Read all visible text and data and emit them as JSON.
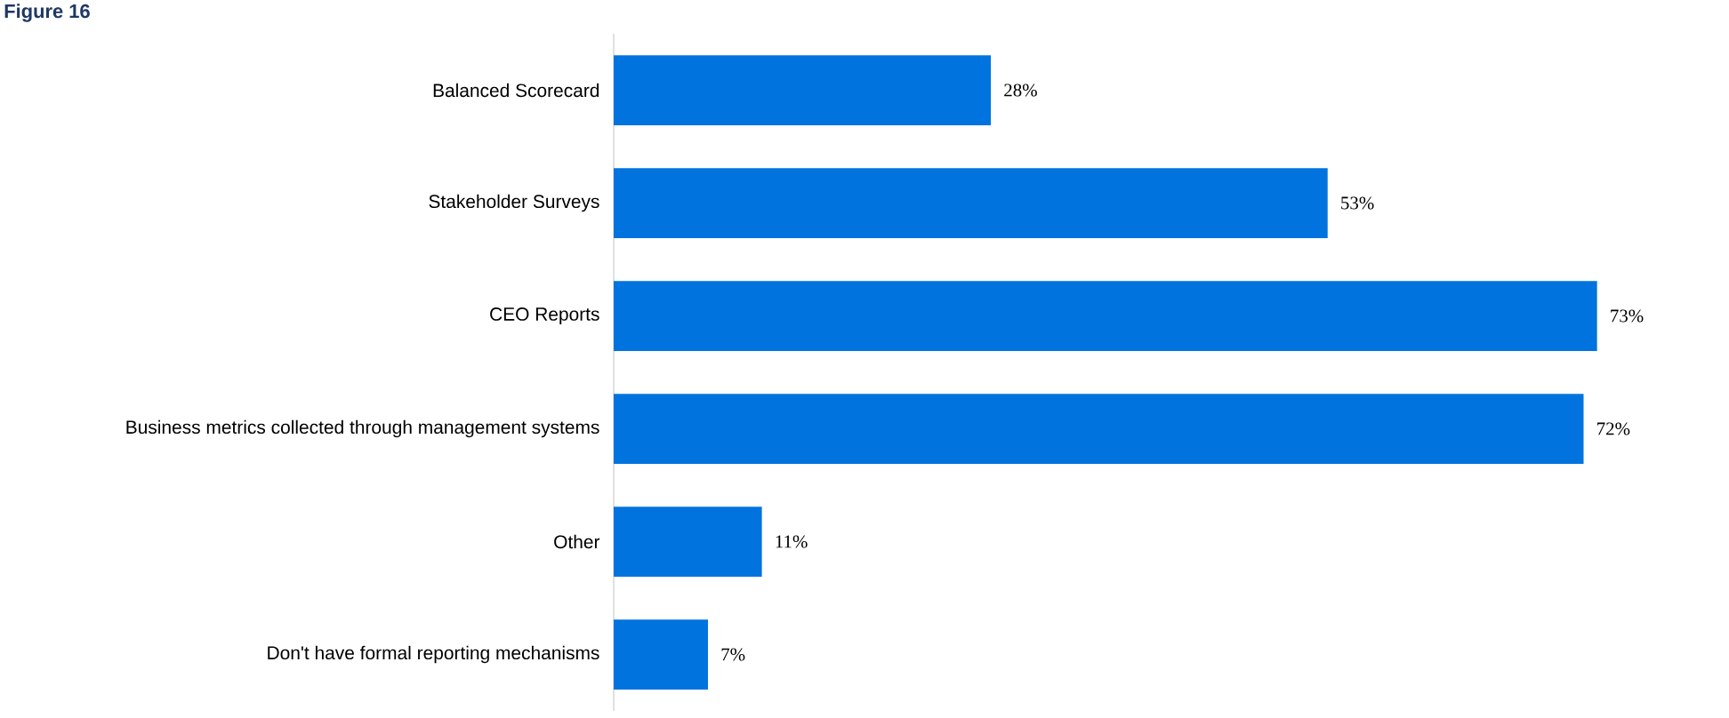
{
  "chart_data": {
    "type": "bar",
    "orientation": "horizontal",
    "title": "Figure 16",
    "categories": [
      "Balanced Scorecard",
      "Stakeholder Surveys",
      "CEO Reports",
      "Business metrics collected through management systems",
      "Other",
      "Don't have formal reporting mechanisms"
    ],
    "values": [
      28,
      53,
      73,
      72,
      11,
      7
    ],
    "value_labels": [
      "28%",
      "53%",
      "73%",
      "72%",
      "11%",
      "7%"
    ],
    "color": "#0073de"
  }
}
